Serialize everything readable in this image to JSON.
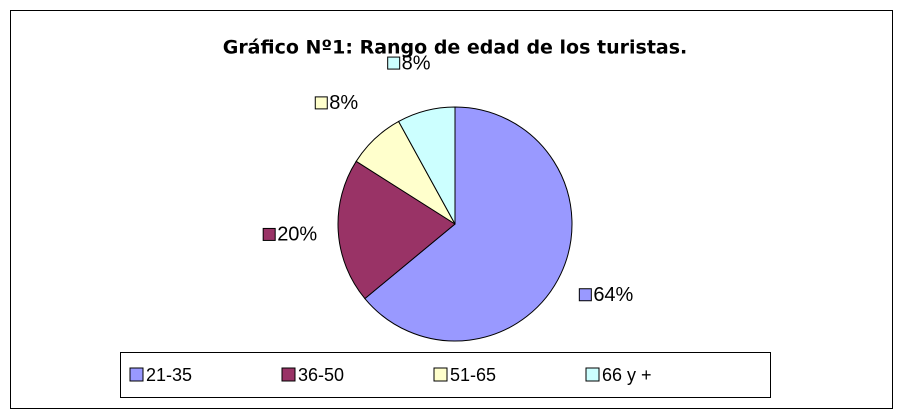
{
  "chart_data": {
    "type": "pie",
    "title": "Gráfico Nº1: Rango de edad de los turistas.",
    "categories": [
      "21-35",
      "36-50",
      "51-65",
      "66 y +"
    ],
    "values": [
      64,
      20,
      8,
      8
    ],
    "value_labels": [
      "64%",
      "20%",
      "8%",
      "8%"
    ],
    "colors": [
      "#9999ff",
      "#993366",
      "#ffffcc",
      "#ccffff"
    ],
    "legend": "bottom"
  }
}
